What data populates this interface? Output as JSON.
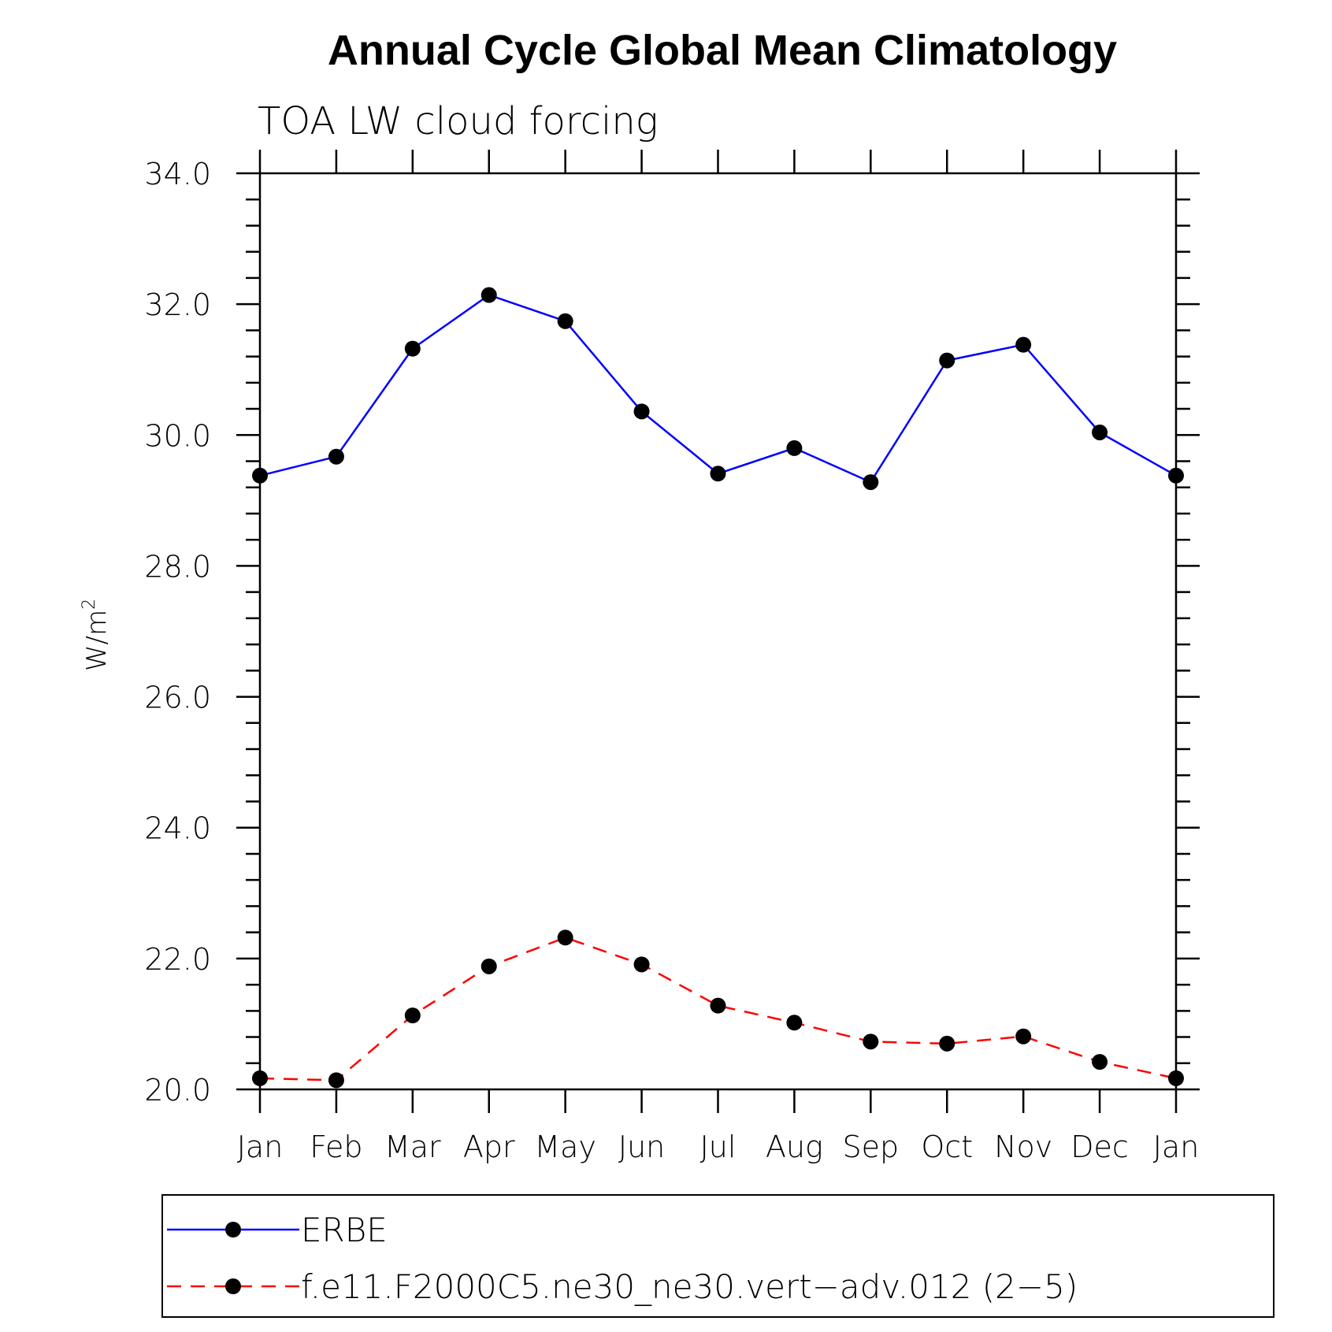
{
  "chart_data": {
    "type": "line",
    "title": "Annual Cycle Global Mean Climatology",
    "subtitle": "TOA LW cloud forcing",
    "ylabel": "W/m",
    "ylabel_superscript": "2",
    "categories": [
      "Jan",
      "Feb",
      "Mar",
      "Apr",
      "May",
      "Jun",
      "Jul",
      "Aug",
      "Sep",
      "Oct",
      "Nov",
      "Dec",
      "Jan"
    ],
    "ylim": [
      20.0,
      34.0
    ],
    "yticks": [
      "20.0",
      "22.0",
      "24.0",
      "26.0",
      "28.0",
      "30.0",
      "32.0",
      "34.0"
    ],
    "series": [
      {
        "name": "ERBE",
        "color": "#0000ff",
        "line_style": "solid",
        "marker": "filled-circle",
        "values": [
          29.38,
          29.67,
          31.32,
          32.14,
          31.74,
          30.36,
          29.41,
          29.8,
          29.28,
          31.14,
          31.38,
          30.04,
          29.38
        ]
      },
      {
        "name": "f.e11.F2000C5.ne30_ne30.vert−adv.012 (2−5)",
        "color": "#ff0000",
        "line_style": "dashed",
        "marker": "filled-circle",
        "values": [
          20.17,
          20.14,
          21.13,
          21.88,
          22.32,
          21.91,
          21.28,
          21.02,
          20.73,
          20.7,
          20.81,
          20.42,
          20.17
        ]
      }
    ],
    "legend_position": "bottom",
    "grid": false
  }
}
